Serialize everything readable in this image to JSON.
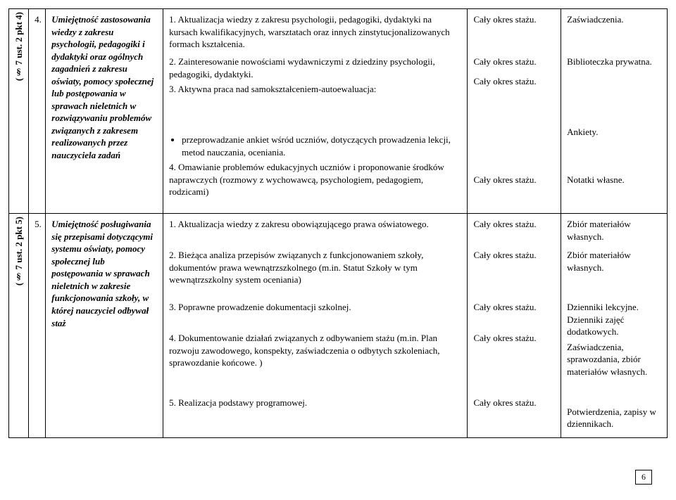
{
  "rows": [
    {
      "rotated": "(§ 7 ust. 2 pkt 4)",
      "num": "4.",
      "skill": "Umiejętność zastosowania wiedzy z zakresu psychologii, pedagogiki i dydaktyki oraz ogólnych zagadnień z zakresu oświaty, pomocy społecznej lub postępowania w sprawach nieletnich w rozwiązywaniu problemów związanych z zakresem realizowanych przez nauczyciela zadań",
      "tasks": [
        {
          "type": "p",
          "text": "1. Aktualizacja wiedzy z zakresu psychologii, pedagogiki, dydaktyki na kursach kwalifikacyjnych, warsztatach oraz innych zinstytucjonalizowanych formach kształcenia."
        },
        {
          "type": "p",
          "text": "2. Zainteresowanie nowościami wydawniczymi z dziedziny psychologii, pedagogiki, dydaktyki."
        },
        {
          "type": "p",
          "text": "3. Aktywna praca nad samokształceniem-autoewaluacja:"
        },
        {
          "type": "li",
          "text": "przeprowadzanie ankiet wśród uczniów, dotyczących prowadzenia lekcji, metod nauczania, oceniania."
        },
        {
          "type": "p",
          "text": "4. Omawianie problemów edukacyjnych uczniów i proponowanie środków naprawczych (rozmowy z wychowawcą, psychologiem, pedagogiem, rodzicami)"
        }
      ],
      "periods": [
        "Cały okres stażu.",
        "Cały okres stażu.",
        "Cały okres stażu.",
        "",
        "Cały okres stażu."
      ],
      "docs": [
        "Zaświadczenia.",
        "Biblioteczka prywatna.",
        "",
        "Ankiety.",
        "Notatki własne."
      ]
    },
    {
      "rotated": "(§ 7 ust. 2 pkt 5)",
      "num": "5.",
      "skill": "Umiejętność posługiwania się przepisami dotyczącymi systemu oświaty, pomocy społecznej lub postępowania w sprawach nieletnich w zakresie funkcjonowania szkoły, w której nauczyciel odbywał staż",
      "tasks": [
        {
          "type": "p",
          "text": "1. Aktualizacja wiedzy z zakresu obowiązującego prawa oświatowego."
        },
        {
          "type": "p",
          "text": "2. Bieżąca analiza przepisów związanych z funkcjonowaniem szkoły, dokumentów prawa wewnątrzszkolnego (m.in. Statut Szkoły w tym wewnątrzszkolny system oceniania)"
        },
        {
          "type": "p",
          "text": "3. Poprawne prowadzenie dokumentacji szkolnej."
        },
        {
          "type": "p",
          "text": "4. Dokumentowanie działań związanych z odbywaniem stażu (m.in. Plan rozwoju zawodowego, konspekty, zaświadczenia o odbytych szkoleniach, sprawozdanie końcowe. )"
        },
        {
          "type": "p",
          "text": "5. Realizacja podstawy programowej."
        }
      ],
      "periods": [
        "Cały okres stażu.",
        "Cały okres stażu.",
        "Cały okres stażu.",
        "Cały okres stażu.",
        "Cały okres stażu."
      ],
      "docs": [
        "Zbiór materiałów własnych.",
        "Zbiór materiałów własnych.",
        "Dzienniki lekcyjne. Dzienniki zajęć dodatkowych.",
        "Zaświadczenia, sprawozdania, zbiór materiałów własnych.",
        "Potwierdzenia, zapisy w dziennikach."
      ]
    }
  ],
  "spacingRow1": [
    56,
    24,
    68,
    64
  ],
  "spacingRow2": [
    40,
    70,
    40,
    88,
    22
  ],
  "pageNumber": "6"
}
